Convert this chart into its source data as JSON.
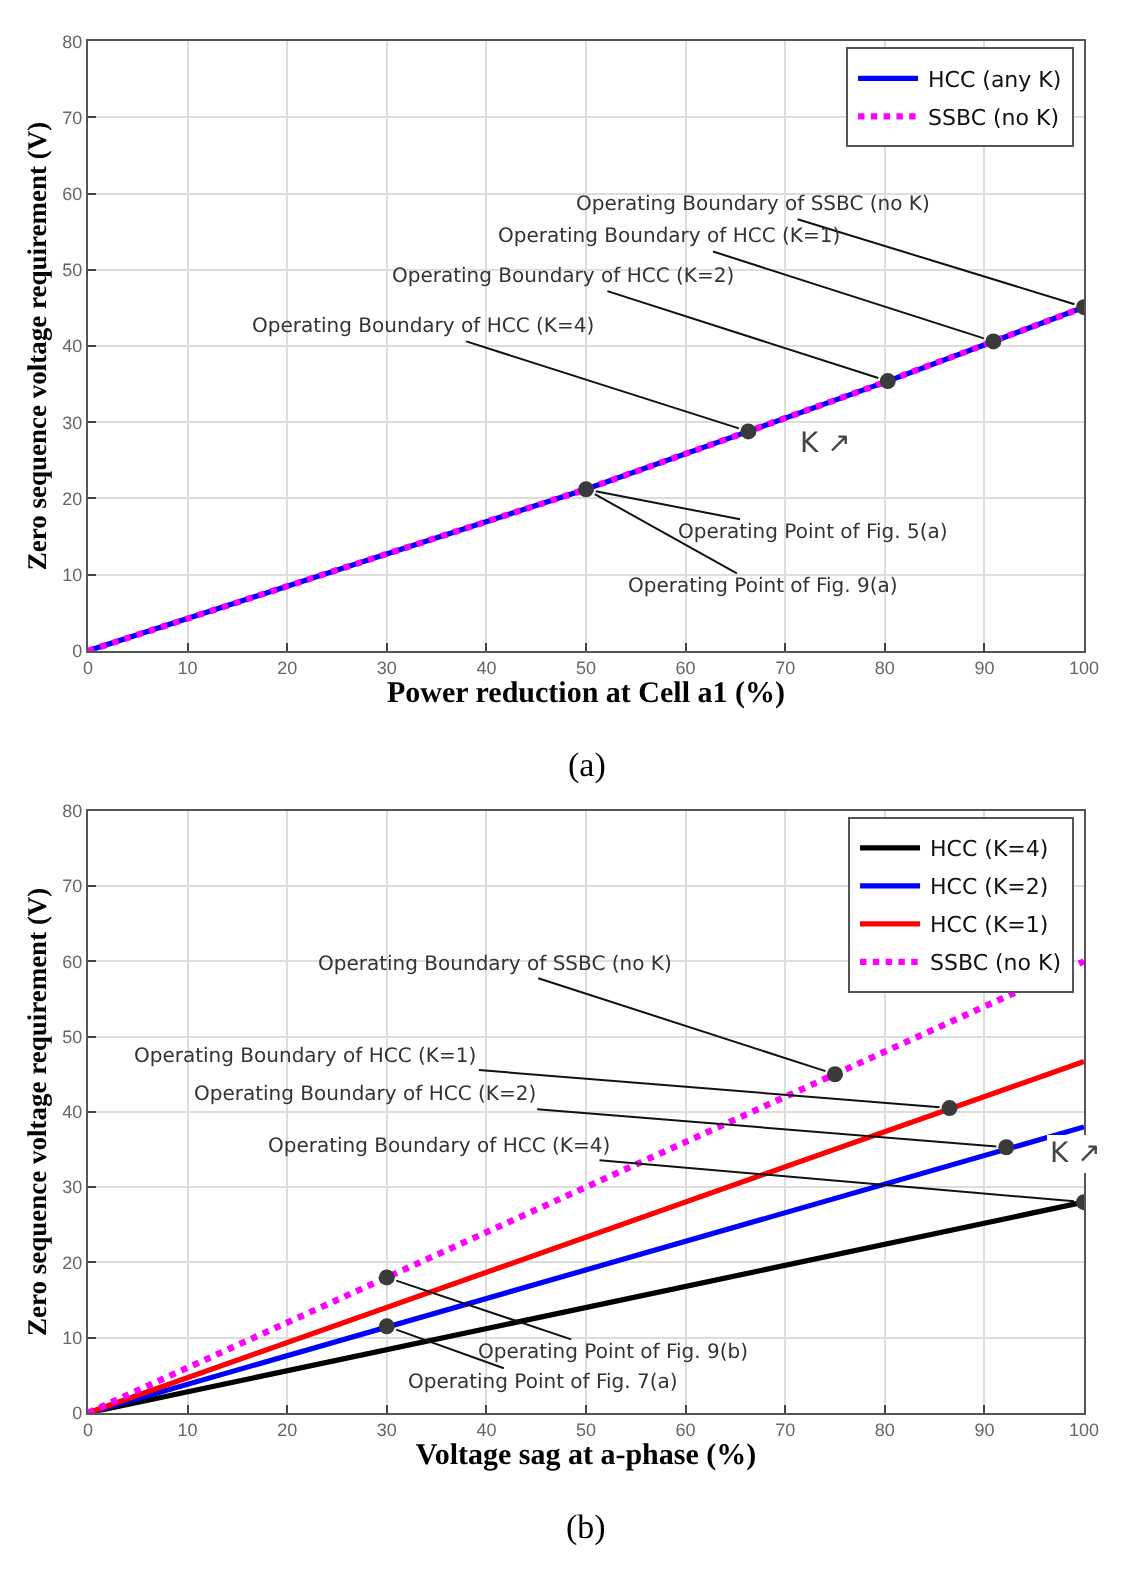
{
  "chart_data": [
    {
      "type": "line",
      "xlabel": "Power reduction at Cell a1 (%)",
      "ylabel": "Zero sequence voltage requirement (V)",
      "xlim": [
        0,
        100
      ],
      "ylim": [
        0,
        80
      ],
      "xticks": [
        0,
        10,
        20,
        30,
        40,
        50,
        60,
        70,
        80,
        90,
        100
      ],
      "yticks": [
        0,
        10,
        20,
        30,
        40,
        50,
        60,
        70,
        80
      ],
      "grid": true,
      "legend": "top right",
      "marker": "none",
      "series": [
        {
          "name": "HCC (any K)",
          "color": "#0000ff",
          "line_style": "solid",
          "x": [
            0,
            50,
            66.3,
            80.3,
            90.9,
            100
          ],
          "values": [
            0,
            21.2,
            28.8,
            35.4,
            40.6,
            45.1
          ]
        },
        {
          "name": "SSBC (no K)",
          "color": "#ff00ff",
          "line_style": "dotted",
          "x": [
            0,
            50,
            66.3,
            80.3,
            90.9,
            100
          ],
          "values": [
            0,
            21.2,
            28.8,
            35.4,
            40.6,
            45.1
          ]
        },
        {
          "type": "scatter",
          "marker": "circle",
          "color": "#3a3a3a",
          "x": [
            50,
            66.3,
            80.3,
            90.9,
            100
          ],
          "values": [
            21.2,
            28.8,
            35.4,
            40.6,
            45.1
          ]
        }
      ],
      "annotations": [
        {
          "text": "Operating Boundary of SSBC (no K)",
          "x": 100,
          "y": 45.1
        },
        {
          "text": "Operating Boundary of HCC (K=1)",
          "x": 90.9,
          "y": 40.6
        },
        {
          "text": "Operating Boundary of HCC (K=2)",
          "x": 80.3,
          "y": 35.4
        },
        {
          "text": "Operating Boundary of HCC (K=4)",
          "x": 66.3,
          "y": 28.8
        },
        {
          "text": "Operating Point of Fig. 5(a)",
          "x": 50,
          "y": 21.2
        },
        {
          "text": "Operating Point of Fig. 9(a)",
          "x": 50,
          "y": 21.2
        },
        "K ↗",
        "(a)"
      ]
    },
    {
      "type": "line",
      "xlabel": "Voltage sag at a-phase (%)",
      "ylabel": "Zero sequence voltage requirement (V)",
      "xlim": [
        0,
        100
      ],
      "ylim": [
        0,
        80
      ],
      "xticks": [
        0,
        10,
        20,
        30,
        40,
        50,
        60,
        70,
        80,
        90,
        100
      ],
      "yticks": [
        0,
        10,
        20,
        30,
        40,
        50,
        60,
        70,
        80
      ],
      "grid": true,
      "legend": "top right",
      "marker": "none",
      "series": [
        {
          "name": "HCC (K=4)",
          "color": "#000000",
          "line_style": "solid",
          "x": [
            0,
            100
          ],
          "values": [
            0,
            28
          ]
        },
        {
          "name": "HCC (K=2)",
          "color": "#0000ff",
          "line_style": "solid",
          "x": [
            0,
            100
          ],
          "values": [
            0,
            38
          ]
        },
        {
          "name": "HCC (K=1)",
          "color": "#ff0000",
          "line_style": "solid",
          "x": [
            0,
            100
          ],
          "values": [
            0,
            46.7
          ]
        },
        {
          "name": "SSBC (no K)",
          "color": "#ff00ff",
          "line_style": "dotted",
          "x": [
            0,
            100
          ],
          "values": [
            0,
            60
          ]
        },
        {
          "type": "scatter",
          "marker": "circle",
          "color": "#3a3a3a",
          "x": [
            75,
            86.5,
            92.2,
            100,
            30,
            30
          ],
          "values": [
            45,
            40.5,
            35.3,
            28,
            18,
            11.5
          ]
        }
      ],
      "annotations": [
        {
          "text": "Operating Boundary of SSBC (no K)",
          "x": 75,
          "y": 45
        },
        {
          "text": "Operating Boundary of HCC (K=1)",
          "x": 86.5,
          "y": 40.5
        },
        {
          "text": "Operating Boundary of HCC (K=2)",
          "x": 92.2,
          "y": 35.3
        },
        {
          "text": "Operating Boundary of HCC (K=4)",
          "x": 100,
          "y": 28
        },
        {
          "text": "Operating Point of Fig. 9(b)",
          "x": 30,
          "y": 18
        },
        {
          "text": "Operating Point of Fig. 7(a)",
          "x": 30,
          "y": 11.5
        },
        "K ↗",
        "(b)"
      ]
    }
  ]
}
